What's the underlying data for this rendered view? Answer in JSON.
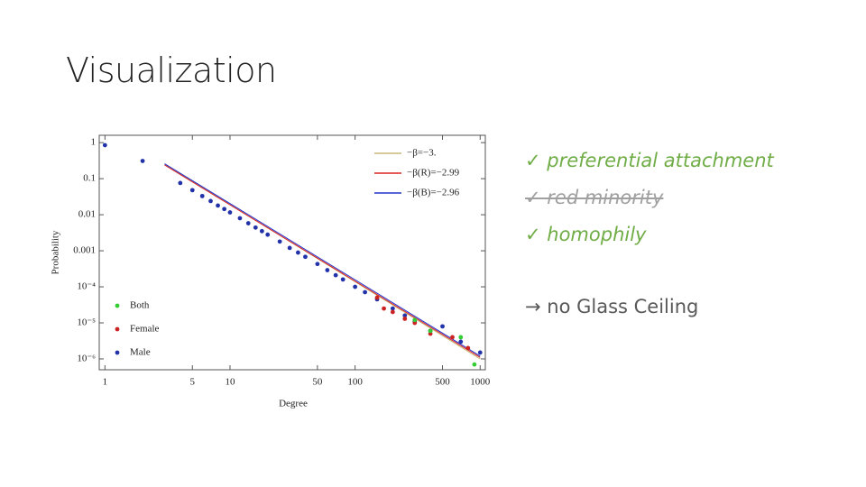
{
  "slide_title": "Visualization",
  "bullets": [
    {
      "text": "✓ preferential attachment",
      "style": "check"
    },
    {
      "text": "✓ red minority",
      "style": "struck"
    },
    {
      "text": "✓ homophily",
      "style": "check"
    },
    {
      "text": "→ no Glass Ceiling",
      "style": "plain"
    }
  ],
  "chart_data": {
    "type": "scatter",
    "xlabel": "Degree",
    "ylabel": "Probability",
    "xscale": "log",
    "yscale": "log",
    "xlim": [
      0.9,
      1100
    ],
    "ylim": [
      5e-07,
      1.6
    ],
    "xticks": [
      1,
      5,
      10,
      50,
      100,
      500,
      1000
    ],
    "yticks": [
      1,
      0.1,
      0.01,
      0.001,
      {
        "value": 0.0001,
        "label": "10⁻⁴"
      },
      {
        "value": 1e-05,
        "label": "10⁻⁵"
      },
      {
        "value": 1e-06,
        "label": "10⁻⁶"
      }
    ],
    "legend": "lower left",
    "series": [
      {
        "name": "Both",
        "color": "#33cc33",
        "x": [
          300,
          400,
          700,
          900
        ],
        "values": [
          1.2e-05,
          6e-06,
          4e-06,
          7e-07
        ]
      },
      {
        "name": "Female",
        "color": "#cc2222",
        "x": [
          150,
          170,
          200,
          250,
          300,
          400,
          600,
          800
        ],
        "values": [
          5e-05,
          2.5e-05,
          2e-05,
          1.3e-05,
          1e-05,
          5e-06,
          4e-06,
          2e-06
        ]
      },
      {
        "name": "Male",
        "color": "#2233aa",
        "x": [
          1,
          2,
          4,
          5,
          6,
          7,
          8,
          9,
          10,
          12,
          14,
          16,
          18,
          20,
          25,
          30,
          35,
          40,
          50,
          60,
          70,
          80,
          100,
          120,
          150,
          200,
          250,
          300,
          400,
          500,
          700,
          1000
        ],
        "values": [
          0.85,
          0.31,
          0.076,
          0.048,
          0.033,
          0.024,
          0.018,
          0.0144,
          0.0116,
          0.008,
          0.0058,
          0.0044,
          0.0035,
          0.0028,
          0.0018,
          0.0012,
          0.00089,
          0.00068,
          0.00043,
          0.00029,
          0.00021,
          0.00016,
          0.0001,
          7.1e-05,
          4.5e-05,
          2.5e-05,
          1.6e-05,
          1.1e-05,
          6e-06,
          8e-06,
          3e-06,
          1.5e-06
        ]
      }
    ],
    "fit_legend": "upper right",
    "fits": [
      {
        "name": "−β=−3.",
        "color": "#c8b97a",
        "x": [
          3,
          1000
        ],
        "values": [
          0.25,
          1e-06
        ]
      },
      {
        "name": "−β(R)=−2.99",
        "color": "#dd2222",
        "x": [
          3,
          1000
        ],
        "values": [
          0.24,
          1.1e-06
        ]
      },
      {
        "name": "−β(B)=−2.96",
        "color": "#2233cc",
        "x": [
          3,
          1000
        ],
        "values": [
          0.26,
          1.2e-06
        ]
      }
    ]
  }
}
